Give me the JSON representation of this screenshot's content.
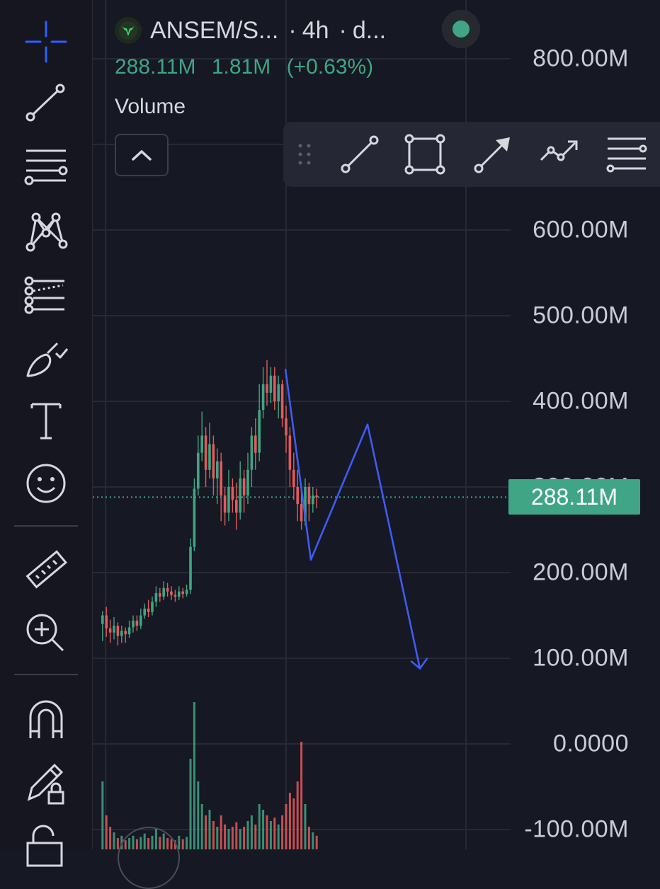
{
  "window": {
    "symbol": "ANSEM/S...",
    "interval": "4h",
    "source": "d...",
    "separator": "·",
    "status_color": "#3fa584"
  },
  "price_row": {
    "last": "288.11M",
    "change": "1.81M",
    "change_pct": "(+0.63%)"
  },
  "indicator": {
    "label": "Volume"
  },
  "y_axis": {
    "labels": [
      "800.00M",
      "600.00M",
      "500.00M",
      "400.00M",
      "288.11M",
      "200.00M",
      "100.00M",
      "0.0000",
      "-100.00M"
    ],
    "obscured_label": "300.00M"
  },
  "current_price_badge": "288.11M",
  "left_toolbar": {
    "tools": [
      "crosshair-icon",
      "trend-line-icon",
      "fib-retracement-icon",
      "xabcd-pattern-icon",
      "parallel-channel-icon",
      "brush-icon",
      "text-icon",
      "emoji-icon",
      "ruler-icon",
      "zoom-in-icon",
      "magnet-icon",
      "lock-drawings-icon",
      "unlock-icon"
    ]
  },
  "drawing_toolbar": {
    "tools": [
      "trend-line-icon",
      "rectangle-icon",
      "arrow-icon",
      "path-icon",
      "fib-lines-icon"
    ]
  },
  "colors": {
    "up": "#3fa584",
    "down": "#e25b5b",
    "accent_blue": "#2962ff",
    "drawing": "#3f5cf0",
    "background": "#161823"
  },
  "chart_data": {
    "type": "candlestick",
    "ylim": [
      -100000000,
      800000000
    ],
    "current_price": 288110000,
    "ohlc": [
      [
        140,
        150,
        155,
        120
      ],
      [
        150,
        135,
        160,
        125
      ],
      [
        135,
        130,
        145,
        118
      ],
      [
        130,
        138,
        148,
        122
      ],
      [
        138,
        126,
        142,
        115
      ],
      [
        126,
        132,
        138,
        118
      ],
      [
        132,
        128,
        136,
        118
      ],
      [
        128,
        136,
        144,
        124
      ],
      [
        136,
        144,
        150,
        130
      ],
      [
        144,
        138,
        150,
        132
      ],
      [
        138,
        150,
        158,
        134
      ],
      [
        150,
        158,
        164,
        146
      ],
      [
        158,
        154,
        168,
        148
      ],
      [
        154,
        166,
        172,
        150
      ],
      [
        166,
        176,
        184,
        160
      ],
      [
        176,
        172,
        182,
        166
      ],
      [
        172,
        182,
        190,
        168
      ],
      [
        182,
        178,
        188,
        172
      ],
      [
        178,
        174,
        184,
        168
      ],
      [
        174,
        172,
        180,
        166
      ],
      [
        172,
        178,
        184,
        168
      ],
      [
        178,
        175,
        182,
        170
      ],
      [
        175,
        180,
        186,
        172
      ],
      [
        180,
        230,
        240,
        175
      ],
      [
        230,
        298,
        310,
        225
      ],
      [
        298,
        340,
        360,
        290
      ],
      [
        340,
        360,
        388,
        330
      ],
      [
        360,
        320,
        370,
        300
      ],
      [
        320,
        350,
        375,
        310
      ],
      [
        350,
        310,
        360,
        290
      ],
      [
        310,
        330,
        345,
        280
      ],
      [
        330,
        290,
        340,
        260
      ],
      [
        290,
        270,
        300,
        255
      ],
      [
        270,
        300,
        320,
        260
      ],
      [
        300,
        285,
        310,
        270
      ],
      [
        285,
        270,
        305,
        250
      ],
      [
        270,
        310,
        330,
        262
      ],
      [
        310,
        290,
        320,
        270
      ],
      [
        290,
        320,
        340,
        280
      ],
      [
        320,
        360,
        370,
        300
      ],
      [
        360,
        340,
        380,
        320
      ],
      [
        340,
        390,
        420,
        330
      ],
      [
        390,
        420,
        440,
        380
      ],
      [
        420,
        410,
        448,
        395
      ],
      [
        410,
        430,
        440,
        398
      ],
      [
        430,
        400,
        440,
        390
      ],
      [
        400,
        420,
        430,
        380
      ],
      [
        420,
        380,
        425,
        370
      ],
      [
        380,
        360,
        395,
        340
      ],
      [
        360,
        320,
        370,
        300
      ],
      [
        320,
        300,
        340,
        285
      ],
      [
        300,
        280,
        320,
        260
      ],
      [
        280,
        260,
        300,
        250
      ],
      [
        260,
        300,
        310,
        255
      ],
      [
        300,
        280,
        305,
        260
      ],
      [
        280,
        290,
        300,
        270
      ],
      [
        290,
        288,
        298,
        275
      ]
    ],
    "volume": [
      60,
      30,
      20,
      15,
      10,
      12,
      8,
      10,
      12,
      9,
      11,
      14,
      10,
      12,
      18,
      11,
      14,
      10,
      9,
      8,
      12,
      9,
      11,
      80,
      130,
      60,
      40,
      30,
      35,
      25,
      20,
      30,
      22,
      18,
      20,
      24,
      18,
      20,
      25,
      30,
      22,
      40,
      35,
      30,
      25,
      28,
      22,
      30,
      40,
      50,
      45,
      60,
      95,
      40,
      20,
      15,
      12
    ],
    "drawing_path": [
      [
        2025,
        420
      ],
      [
        2039,
        360
      ],
      [
        2053,
        250
      ],
      [
        2066,
        340
      ],
      [
        2083,
        100
      ]
    ]
  }
}
